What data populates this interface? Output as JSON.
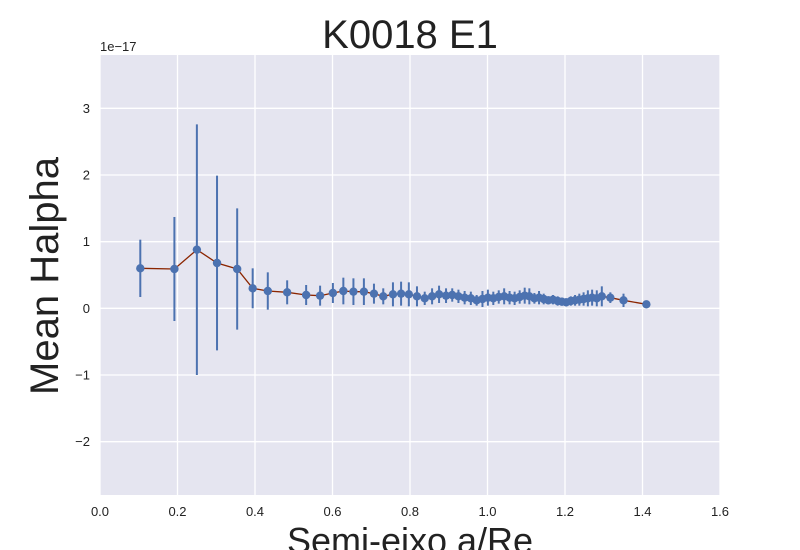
{
  "chart_data": {
    "type": "line",
    "title": "K0018 E1",
    "xlabel": "Semi-eixo a/Re",
    "ylabel": "Mean Halpha",
    "y_scale_label": "1e−17",
    "xlim": [
      0.0,
      1.6
    ],
    "ylim": [
      -2.8,
      3.8
    ],
    "x_ticks": [
      0.0,
      0.2,
      0.4,
      0.6,
      0.8,
      1.0,
      1.2,
      1.4,
      1.6
    ],
    "x_tick_labels": [
      "0.0",
      "0.2",
      "0.4",
      "0.6",
      "0.8",
      "1.0",
      "1.2",
      "1.4",
      "1.6"
    ],
    "y_ticks": [
      -2,
      -1,
      0,
      1,
      2,
      3
    ],
    "y_tick_labels": [
      "−2",
      "−1",
      "0",
      "1",
      "2",
      "3"
    ],
    "grid": true,
    "colors": {
      "background": "#e5e5f0",
      "grid": "#ffffff",
      "line": "#8b2500",
      "marker": "#4c72b0",
      "errorbar": "#4c72b0"
    },
    "series": [
      {
        "x": [
          0.104,
          0.192,
          0.25,
          0.302,
          0.354,
          0.394,
          0.433,
          0.483,
          0.532,
          0.568,
          0.601,
          0.628,
          0.654,
          0.681,
          0.707,
          0.731,
          0.756,
          0.777,
          0.797,
          0.818,
          0.838,
          0.857,
          0.875,
          0.893,
          0.909,
          0.925,
          0.941,
          0.957,
          0.972,
          0.987,
          1.001,
          1.015,
          1.029,
          1.043,
          1.057,
          1.07,
          1.083,
          1.096,
          1.108,
          1.121,
          1.133,
          1.145,
          1.157,
          1.169,
          1.181,
          1.192,
          1.203,
          1.215,
          1.226,
          1.237,
          1.248,
          1.259,
          1.27,
          1.282,
          1.295,
          1.317,
          1.351,
          1.41
        ],
        "y": [
          0.6,
          0.59,
          0.88,
          0.68,
          0.59,
          0.3,
          0.26,
          0.24,
          0.2,
          0.19,
          0.23,
          0.26,
          0.25,
          0.25,
          0.22,
          0.18,
          0.21,
          0.22,
          0.21,
          0.18,
          0.15,
          0.18,
          0.21,
          0.19,
          0.2,
          0.18,
          0.16,
          0.15,
          0.12,
          0.14,
          0.16,
          0.15,
          0.17,
          0.18,
          0.16,
          0.15,
          0.17,
          0.19,
          0.18,
          0.15,
          0.16,
          0.14,
          0.12,
          0.13,
          0.11,
          0.1,
          0.09,
          0.11,
          0.12,
          0.13,
          0.14,
          0.15,
          0.16,
          0.15,
          0.18,
          0.16,
          0.12,
          0.06
        ],
        "err": [
          0.43,
          0.78,
          1.88,
          1.31,
          0.91,
          0.3,
          0.28,
          0.18,
          0.15,
          0.15,
          0.15,
          0.2,
          0.2,
          0.2,
          0.15,
          0.12,
          0.18,
          0.18,
          0.18,
          0.15,
          0.1,
          0.12,
          0.13,
          0.11,
          0.1,
          0.1,
          0.1,
          0.1,
          0.08,
          0.12,
          0.12,
          0.1,
          0.1,
          0.12,
          0.1,
          0.1,
          0.1,
          0.12,
          0.12,
          0.08,
          0.1,
          0.08,
          0.06,
          0.07,
          0.07,
          0.06,
          0.06,
          0.07,
          0.08,
          0.09,
          0.1,
          0.12,
          0.12,
          0.12,
          0.15,
          0.08,
          0.1,
          0.04
        ]
      }
    ]
  }
}
